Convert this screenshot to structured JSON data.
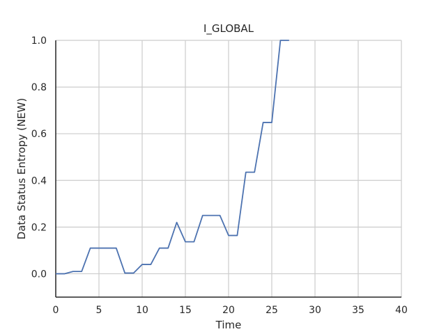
{
  "chart_data": {
    "type": "line",
    "title": "I_GLOBAL",
    "xlabel": "Time",
    "ylabel": "Data Status Entropy (NEW)",
    "xlim": [
      0,
      40
    ],
    "ylim": [
      -0.1,
      1.0
    ],
    "xticks": [
      0,
      5,
      10,
      15,
      20,
      25,
      30,
      35,
      40
    ],
    "yticks": [
      0.0,
      0.2,
      0.4,
      0.6,
      0.8,
      1.0
    ],
    "xtick_labels": [
      "0",
      "5",
      "10",
      "15",
      "20",
      "25",
      "30",
      "35",
      "40"
    ],
    "ytick_labels": [
      "0.0",
      "0.2",
      "0.4",
      "0.6",
      "0.8",
      "1.0"
    ],
    "grid": true,
    "series": [
      {
        "color": "#4c72b0",
        "x": [
          0,
          1,
          2,
          3,
          4,
          5,
          6,
          7,
          8,
          9,
          10,
          11,
          12,
          13,
          14,
          15,
          16,
          17,
          18,
          19,
          20,
          21,
          22,
          23,
          24,
          25,
          26,
          27
        ],
        "y": [
          0.0,
          0.0,
          0.01,
          0.01,
          0.11,
          0.11,
          0.11,
          0.11,
          0.003,
          0.003,
          0.04,
          0.04,
          0.11,
          0.11,
          0.22,
          0.137,
          0.137,
          0.25,
          0.25,
          0.25,
          0.164,
          0.164,
          0.435,
          0.435,
          0.648,
          0.648,
          1.0,
          1.0
        ]
      }
    ]
  }
}
